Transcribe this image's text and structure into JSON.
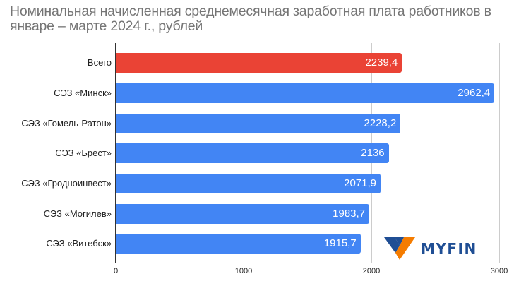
{
  "title": "Номинальная начисленная среднемесячная заработная плата работников в январе – марте 2024 г., рублей",
  "colors": {
    "highlight": "#EA4335",
    "bar": "#4285F4",
    "title": "#757575",
    "logo_blue": "#1F4E94",
    "logo_orange": "#F57C00"
  },
  "logo": {
    "text": "MYFIN",
    "icon": "myfin-v-logo-icon"
  },
  "axis": {
    "ticks": [
      "0",
      "1000",
      "2000",
      "3000"
    ]
  },
  "bars": [
    {
      "label": "Всего",
      "value_label": "2239,4"
    },
    {
      "label": "СЭЗ «Минск»",
      "value_label": "2962,4"
    },
    {
      "label": "СЭЗ «Гомель-Ратон»",
      "value_label": "2228,2"
    },
    {
      "label": "СЭЗ «Брест»",
      "value_label": "2136"
    },
    {
      "label": "СЭЗ «Гродноинвест»",
      "value_label": "2071,9"
    },
    {
      "label": "СЭЗ «Могилев»",
      "value_label": "1983,7"
    },
    {
      "label": "СЭЗ «Витебск»",
      "value_label": "1915,7"
    }
  ],
  "chart_data": {
    "type": "bar",
    "orientation": "horizontal",
    "title": "Номинальная начисленная среднемесячная заработная плата работников в январе – марте 2024 г., рублей",
    "xlabel": "",
    "ylabel": "",
    "categories": [
      "Всего",
      "СЭЗ «Минск»",
      "СЭЗ «Гомель-Ратон»",
      "СЭЗ «Брест»",
      "СЭЗ «Гродноинвест»",
      "СЭЗ «Могилев»",
      "СЭЗ «Витебск»"
    ],
    "values": [
      2239.4,
      2962.4,
      2228.2,
      2136,
      2071.9,
      1983.7,
      1915.7
    ],
    "bar_colors": [
      "#EA4335",
      "#4285F4",
      "#4285F4",
      "#4285F4",
      "#4285F4",
      "#4285F4",
      "#4285F4"
    ],
    "xlim": [
      0,
      3000
    ],
    "xticks": [
      0,
      1000,
      2000,
      3000
    ],
    "grid": true,
    "legend": "none",
    "data_labels": true
  }
}
